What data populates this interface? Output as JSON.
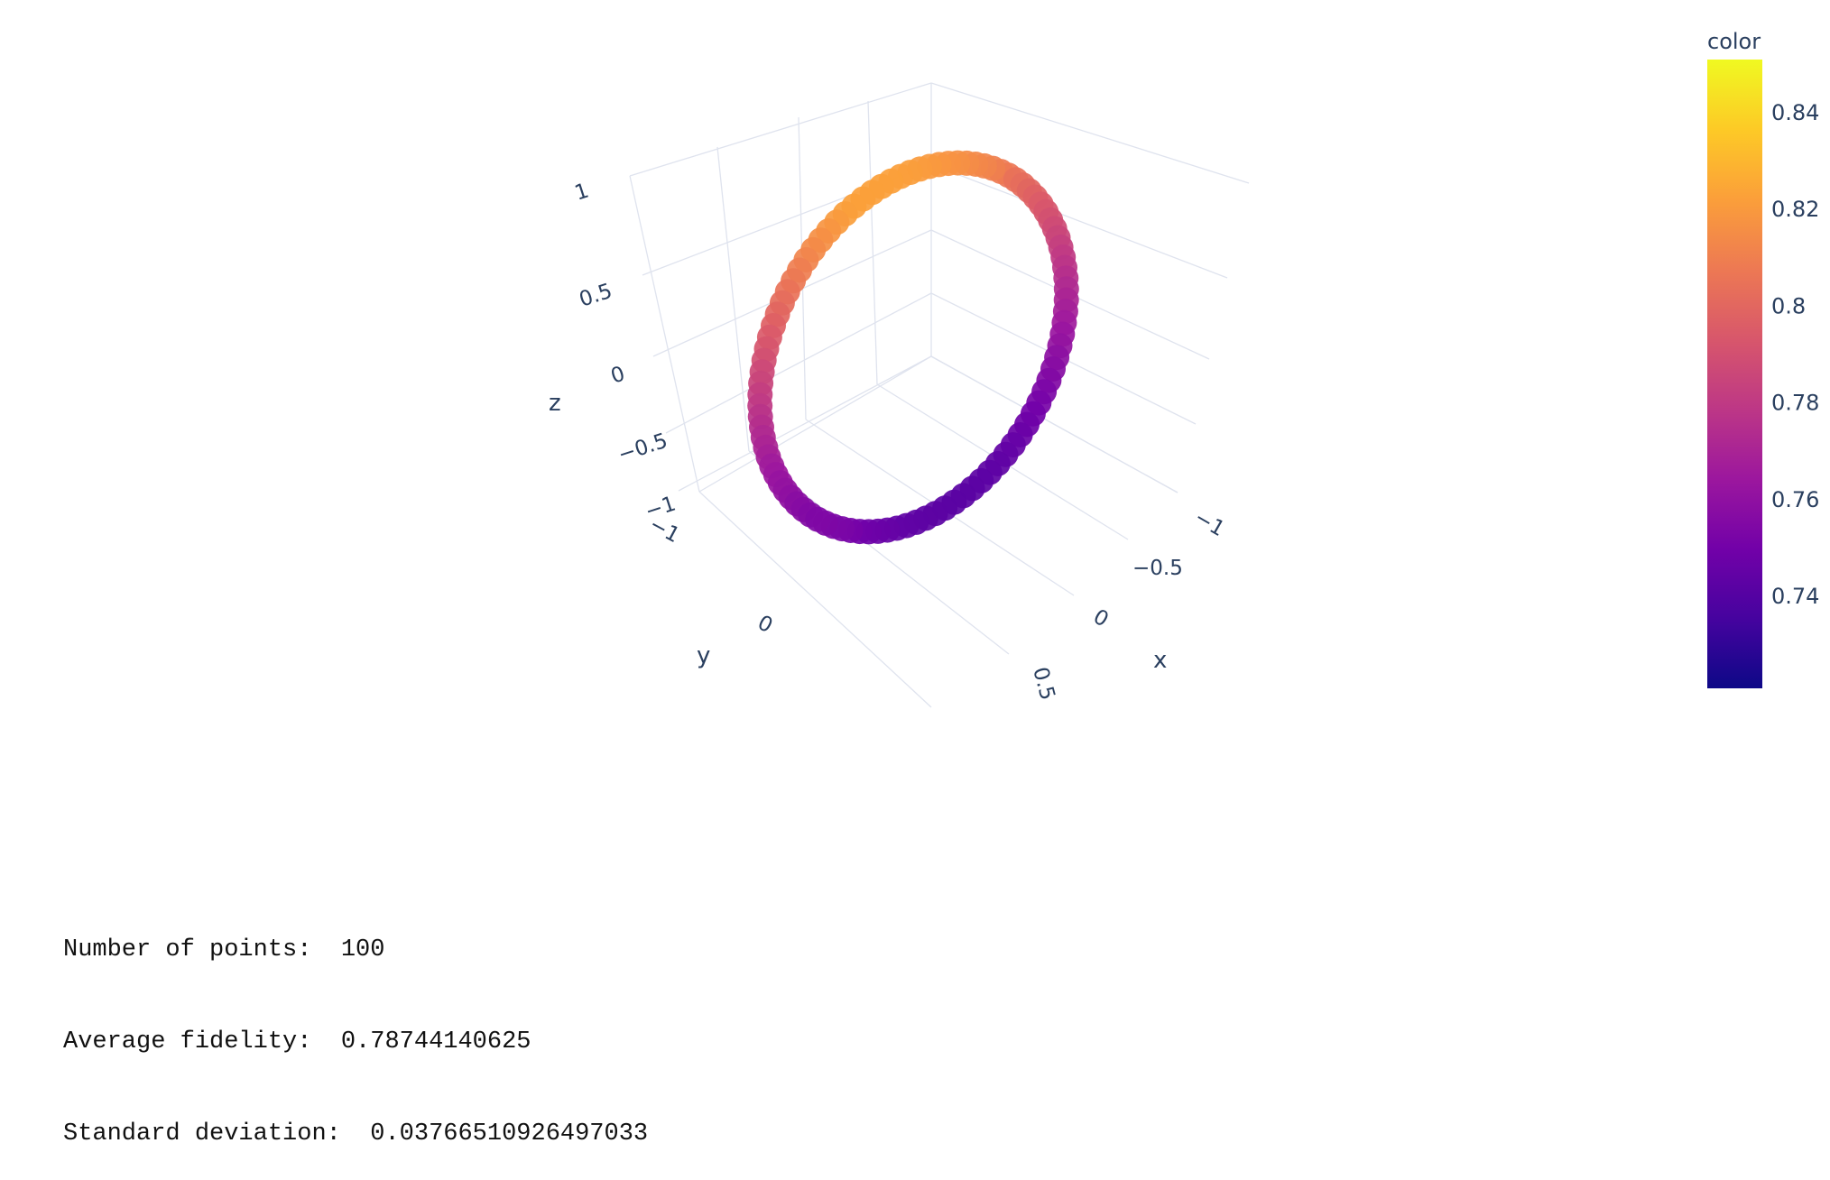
{
  "chart_data": {
    "type": "scatter3d",
    "title": "",
    "axes": {
      "x": {
        "title": "x",
        "tick_labels": [
          "−1",
          "−0.5",
          "0",
          "0.5"
        ],
        "range": [
          -1,
          1
        ]
      },
      "y": {
        "title": "y",
        "tick_labels": [
          "−1",
          "0"
        ],
        "range": [
          -1,
          1
        ]
      },
      "z": {
        "title": "z",
        "tick_labels": [
          "−1",
          "−0.5",
          "0",
          "0.5",
          "1"
        ],
        "range": [
          -1,
          1
        ]
      }
    },
    "grid": true,
    "colorbar": {
      "title": "color",
      "colorscale": "Plasma",
      "range": [
        0.721,
        0.851
      ],
      "tick_values": [
        0.74,
        0.76,
        0.78,
        0.8,
        0.82,
        0.84
      ],
      "tick_labels": [
        "0.74",
        "0.76",
        "0.78",
        "0.8",
        "0.82",
        "0.84"
      ],
      "placement": "right"
    },
    "series": [
      {
        "shape": "great-circle ring",
        "point_count": 100,
        "color_min": 0.721,
        "color_max": 0.851
      }
    ]
  },
  "output": {
    "lines": [
      {
        "label": "Number of points:",
        "value": "100"
      },
      {
        "label": "Average fidelity:",
        "value": "0.78744140625"
      },
      {
        "label": "Standard deviation:",
        "value": "0.03766510926497033"
      }
    ]
  }
}
